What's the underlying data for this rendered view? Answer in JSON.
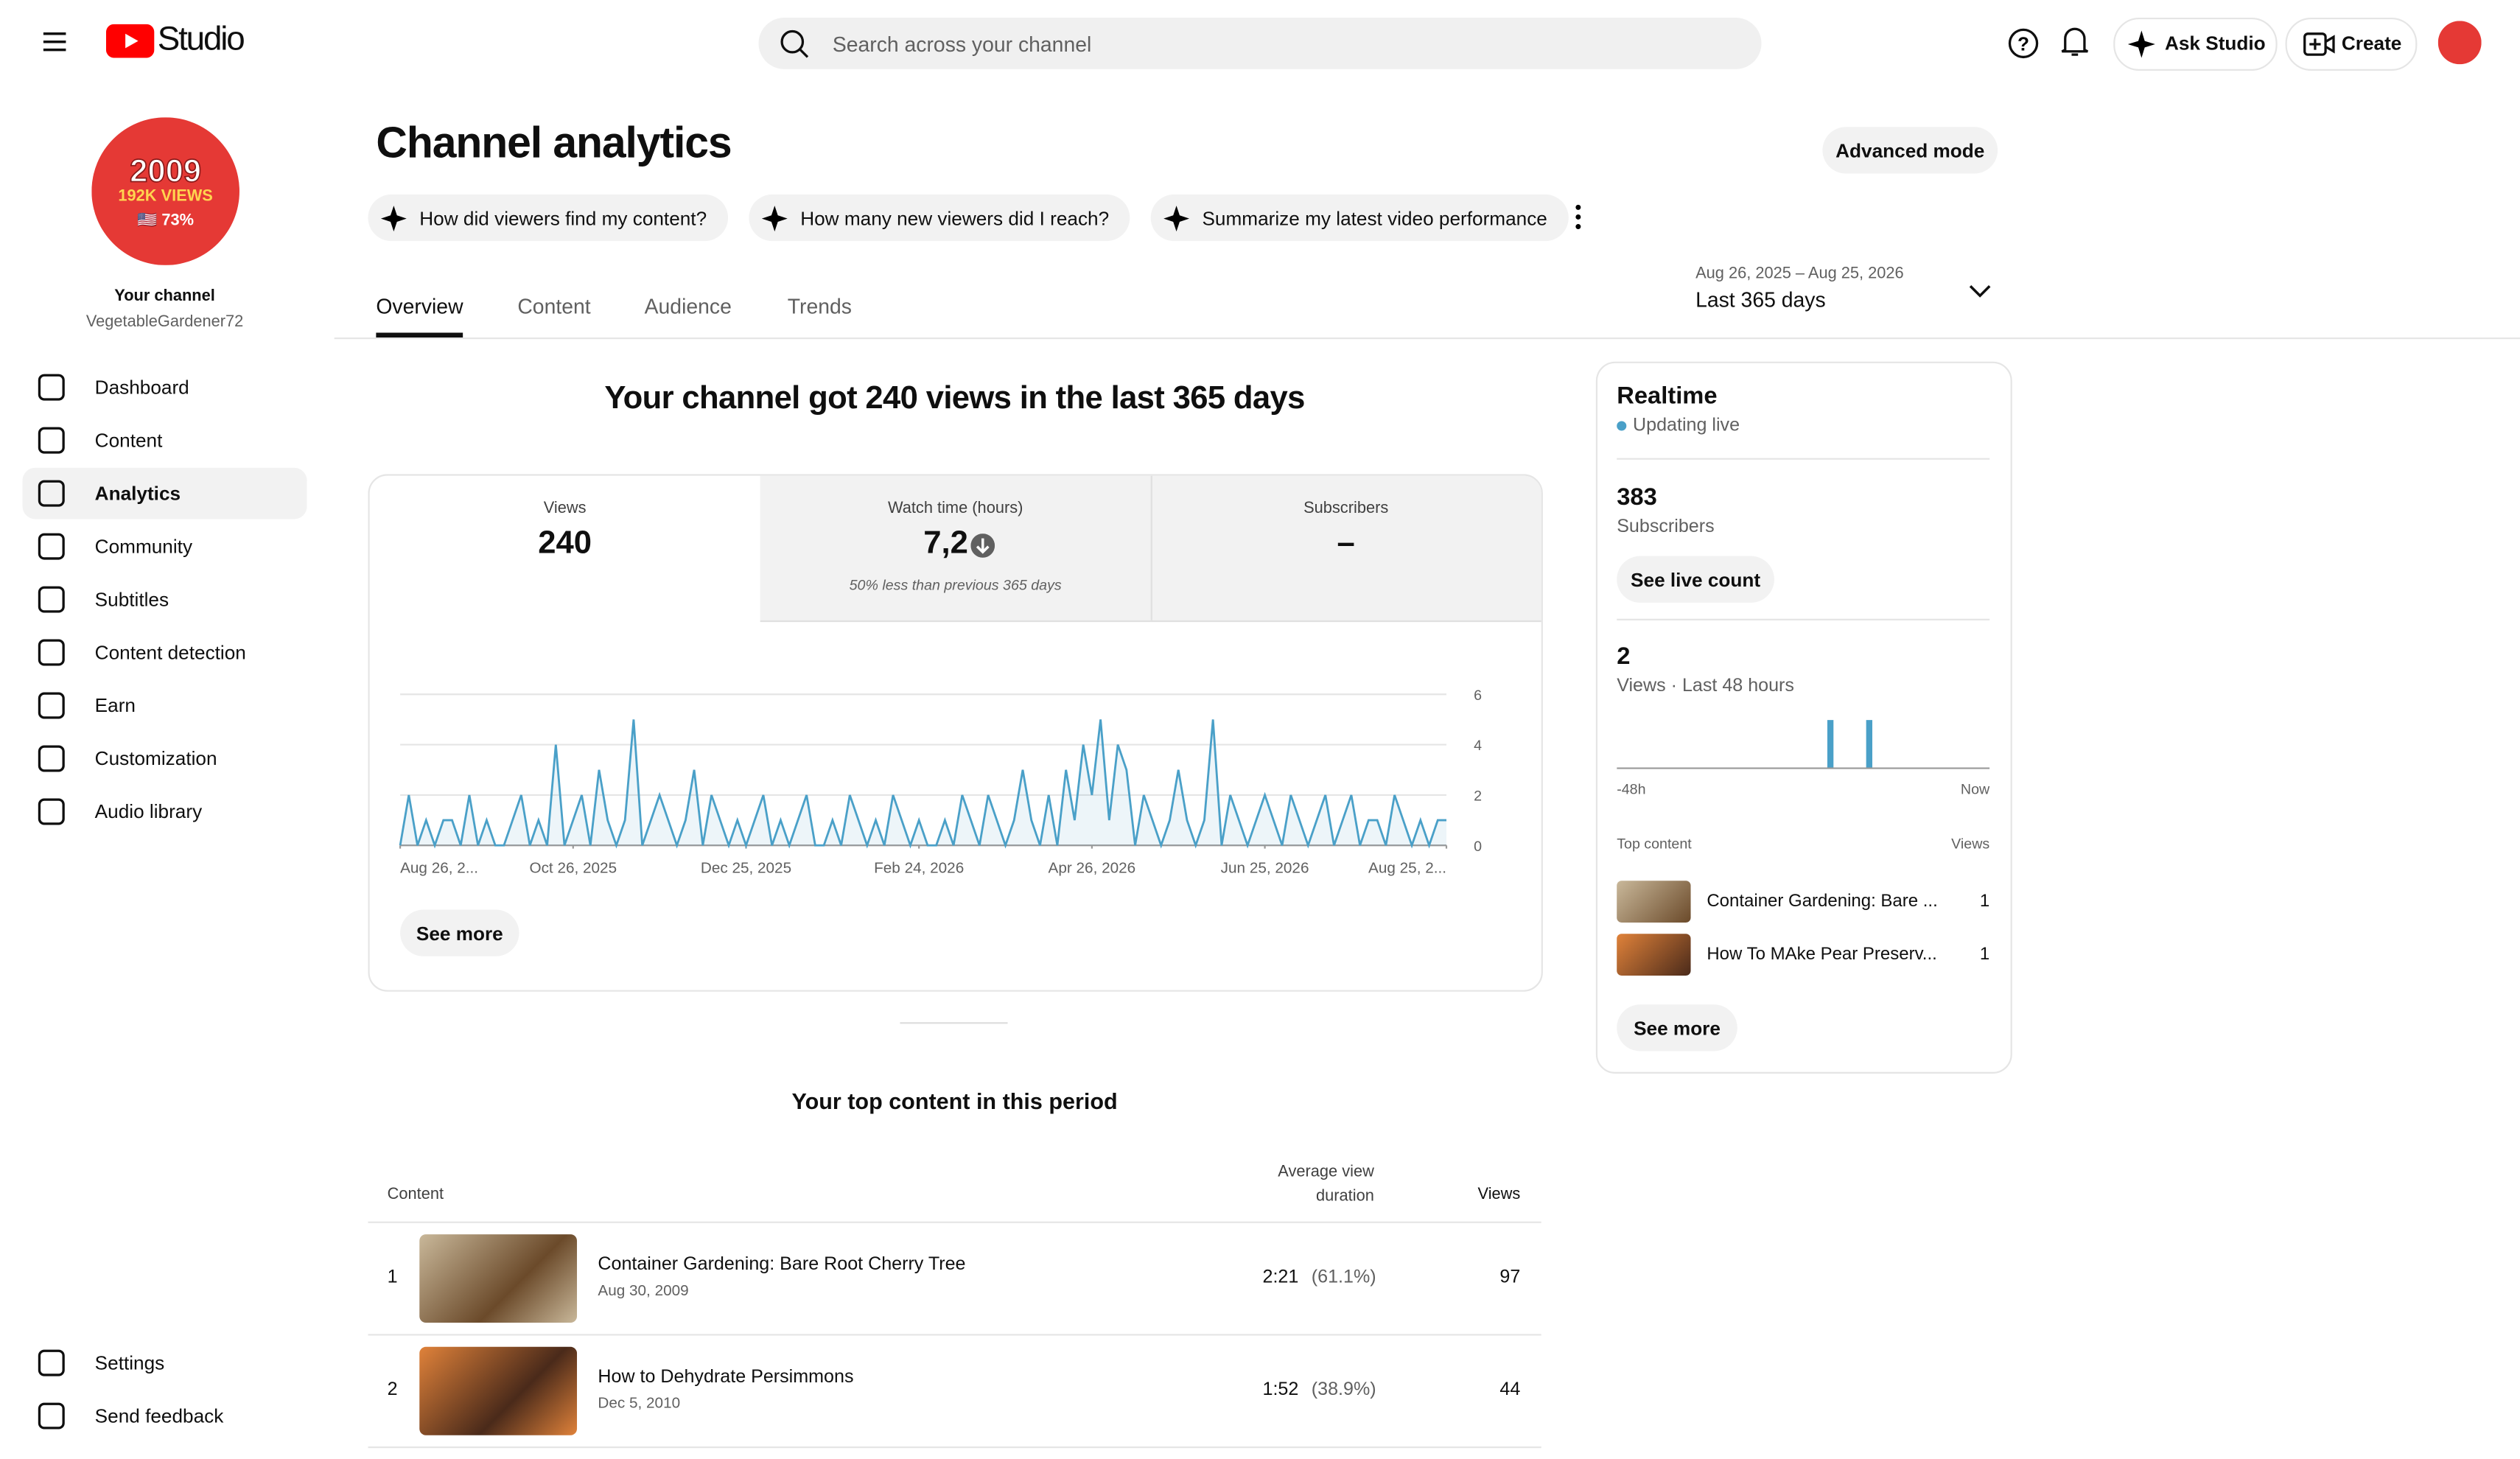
{
  "header": {
    "logo": "Studio",
    "search": "Search across your channel",
    "ask_studio": "Ask Studio",
    "create": "Create"
  },
  "sidebar": {
    "avatar": [
      "2009",
      "192K VIEWS",
      "🇺🇸 73%"
    ],
    "channel_label": "Your channel",
    "channel_name": "VegetableGardener72",
    "nav": [
      "Dashboard",
      "Content",
      "Analytics",
      "Community",
      "Subtitles",
      "Content detection",
      "Earn",
      "Customization",
      "Audio library"
    ],
    "bottom": [
      "Settings",
      "Send feedback"
    ]
  },
  "page": {
    "title": "Channel analytics",
    "advanced_mode": "Advanced mode",
    "prompts": [
      "How did viewers find my content?",
      "How many new viewers did I reach?",
      "Summarize my latest video performance"
    ],
    "tabs": [
      "Overview",
      "Content",
      "Audience",
      "Trends"
    ],
    "date_range": "Aug 26, 2025 – Aug 25, 2026",
    "range_label": "Last 365 days",
    "headline": "Your channel got 240 views in the last 365 days"
  },
  "metrics": [
    {
      "label": "Views",
      "value": "240"
    },
    {
      "label": "Watch time (hours)",
      "value": "7,2",
      "note": "50% less than previous 365 days"
    },
    {
      "label": "Subscribers",
      "value": "–"
    }
  ],
  "chart_data": {
    "type": "line",
    "color": "#4aa0c8",
    "values": [
      0,
      2,
      0,
      1,
      0,
      1,
      1,
      0,
      2,
      0,
      1,
      0,
      0,
      1,
      2,
      0,
      1,
      0,
      4,
      0,
      1,
      2,
      0,
      3,
      1,
      0,
      1,
      5,
      0,
      1,
      2,
      1,
      0,
      1,
      3,
      0,
      2,
      1,
      0,
      1,
      0,
      1,
      2,
      0,
      1,
      0,
      1,
      2,
      0,
      0,
      1,
      0,
      2,
      1,
      0,
      1,
      0,
      2,
      1,
      0,
      1,
      0,
      0,
      1,
      0,
      2,
      1,
      0,
      2,
      1,
      0,
      1,
      3,
      1,
      0,
      2,
      0,
      3,
      1,
      4,
      2,
      5,
      1,
      4,
      3,
      0,
      2,
      1,
      0,
      1,
      3,
      1,
      0,
      1,
      5,
      0,
      2,
      1,
      0,
      1,
      2,
      1,
      0,
      2,
      1,
      0,
      1,
      2,
      0,
      1,
      2,
      0,
      1,
      1,
      0,
      2,
      1,
      0,
      1,
      0,
      1,
      1
    ],
    "xticks": [
      {
        "value": 0,
        "label": "Aug 26, 2..."
      },
      {
        "value": 20,
        "label": "Oct 26, 2025"
      },
      {
        "value": 40,
        "label": "Dec 25, 2025"
      },
      {
        "value": 60,
        "label": "Feb 24, 2026"
      },
      {
        "value": 80,
        "label": "Apr 26, 2026"
      },
      {
        "value": 100,
        "label": "Jun 25, 2026"
      },
      {
        "value": 121,
        "label": "Aug 25, 2..."
      }
    ],
    "xlim": [
      0,
      121
    ],
    "ylim": [
      0,
      6
    ],
    "yticks": [
      0,
      2,
      4,
      6
    ],
    "grid": true
  },
  "see_more": "See more",
  "top_content": {
    "title": "Your top content in this period",
    "columns": [
      "Content",
      "Average view duration",
      "Views"
    ],
    "rows": [
      [
        "1",
        "Container Gardening: Bare Root Cherry Tree",
        "Aug 30, 2009",
        "2:21",
        "(61.1%)",
        "97"
      ],
      [
        "2",
        "How to Dehydrate Persimmons",
        "Dec 5, 2010",
        "1:52",
        "(38.9%)",
        "44"
      ]
    ]
  },
  "realtime": {
    "title": "Realtime",
    "status": "Updating live",
    "subscribers": "383",
    "subscribers_label": "Subscribers",
    "see_live_count": "See live count",
    "views": "2",
    "views_label": "Views · Last 48 hours",
    "chart": {
      "type": "bar",
      "color": "#4aa0c8",
      "values": [
        0,
        0,
        0,
        0,
        0,
        0,
        0,
        0,
        0,
        0,
        0,
        0,
        0,
        0,
        0,
        0,
        0,
        0,
        0,
        0,
        0,
        0,
        0,
        0,
        0,
        0,
        0,
        1,
        0,
        0,
        0,
        0,
        1,
        0,
        0,
        0,
        0,
        0,
        0,
        0,
        0,
        0,
        0,
        0,
        0,
        0,
        0,
        0
      ],
      "ylim": [
        0,
        1
      ]
    },
    "axis": [
      "-48h",
      "Now"
    ],
    "top_content_label": "Top content",
    "views_col": "Views",
    "rows": [
      [
        "Container Gardening: Bare ...",
        "1"
      ],
      [
        "How To MAke Pear Preserv...",
        "1"
      ]
    ],
    "see_more": "See more"
  }
}
